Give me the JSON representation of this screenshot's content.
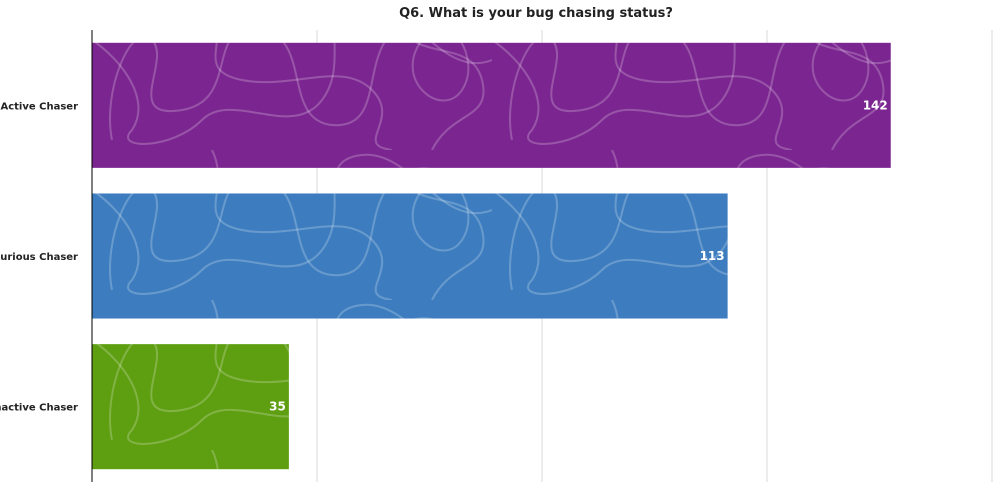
{
  "chart_data": {
    "type": "bar",
    "orientation": "horizontal",
    "title": "Q6. What is your bug chasing status?",
    "categories": [
      "Active Chaser",
      "Curious Chaser",
      "Inactive Chaser"
    ],
    "values": [
      142,
      113,
      35
    ],
    "colors": [
      "#7b2590",
      "#3d7dbf",
      "#5e9e11"
    ],
    "xlim": [
      0,
      160
    ],
    "grid": true,
    "legend": "none"
  }
}
